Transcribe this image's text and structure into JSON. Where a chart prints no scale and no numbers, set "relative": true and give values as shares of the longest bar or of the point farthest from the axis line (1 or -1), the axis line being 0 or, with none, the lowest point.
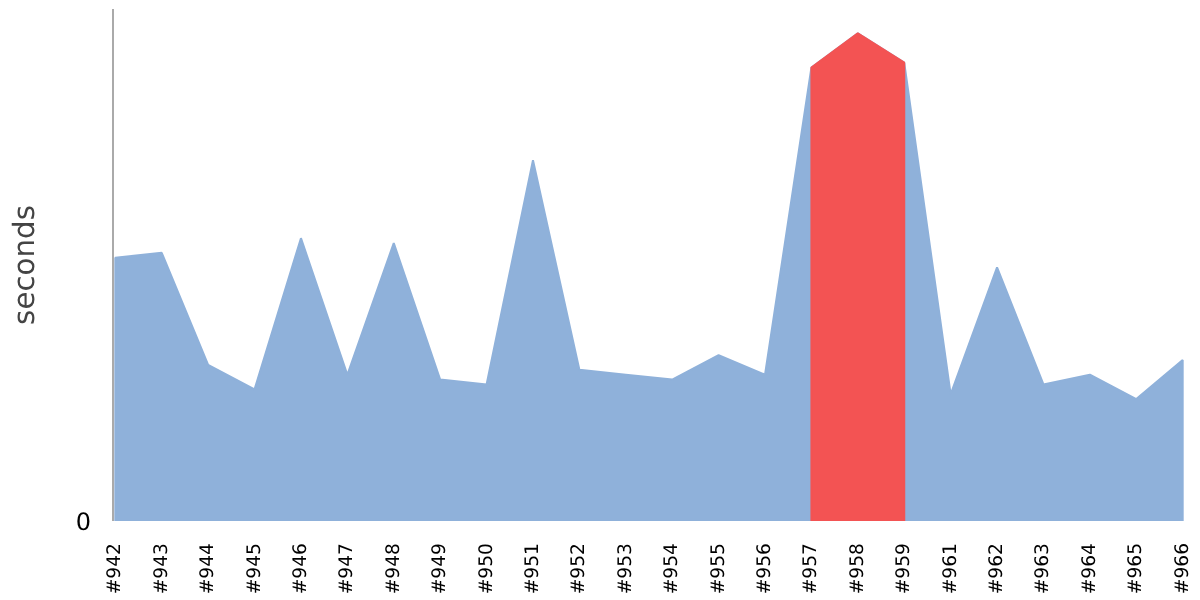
{
  "chart_data": {
    "type": "area",
    "relative": true,
    "ylabel": "seconds",
    "annotations": [
      "0"
    ],
    "categories": [
      "#942",
      "#943",
      "#944",
      "#945",
      "#946",
      "#947",
      "#948",
      "#949",
      "#950",
      "#951",
      "#952",
      "#953",
      "#954",
      "#955",
      "#956",
      "#957",
      "#958",
      "#959",
      "#961",
      "#962",
      "#963",
      "#964",
      "#965",
      "#966"
    ],
    "series": [
      {
        "color": "#8fb1da",
        "values": [
          0.54,
          0.55,
          0.32,
          0.27,
          0.58,
          0.3,
          0.57,
          0.29,
          0.28,
          0.74,
          0.31,
          0.3,
          0.29,
          0.34,
          0.3,
          0.93,
          1.0,
          0.94,
          0.26,
          0.52,
          0.28,
          0.3,
          0.25,
          0.33
        ]
      },
      {
        "color": "#f35353",
        "values": [
          null,
          null,
          null,
          null,
          null,
          null,
          null,
          null,
          null,
          null,
          null,
          null,
          null,
          null,
          null,
          0.93,
          1.0,
          0.94,
          null,
          null,
          null,
          null,
          null,
          null
        ]
      }
    ],
    "legend": false
  }
}
